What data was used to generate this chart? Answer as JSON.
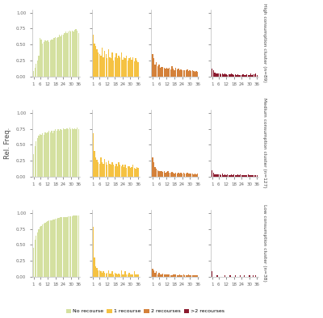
{
  "row_labels": [
    "High consumption cluster (n=89)",
    "Medium consumption cluster (n=127)",
    "Low consumption cluster (n=38)"
  ],
  "col_labels": [
    "No recourse",
    "1 recourse",
    "2 recourses",
    ">2 recourses"
  ],
  "colors": [
    "#d4e0a0",
    "#f5c242",
    "#d4813a",
    "#8b1a2e"
  ],
  "x_ticks": [
    1,
    6,
    12,
    18,
    24,
    30,
    36
  ],
  "n_timepoints": 36,
  "ylabel": "Rel. Freq.",
  "ylim": [
    0,
    1.0
  ],
  "yticks": [
    0.0,
    0.25,
    0.5,
    0.75,
    1.0
  ],
  "no_recourse_high": [
    0.08,
    0.13,
    0.2,
    0.25,
    0.32,
    0.6,
    0.58,
    0.52,
    0.54,
    0.56,
    0.55,
    0.57,
    0.54,
    0.56,
    0.58,
    0.58,
    0.6,
    0.62,
    0.6,
    0.62,
    0.65,
    0.63,
    0.66,
    0.65,
    0.68,
    0.7,
    0.68,
    0.7,
    0.72,
    0.71,
    0.72,
    0.7,
    0.73,
    0.74,
    0.72,
    0.68
  ],
  "recourse1_high": [
    0.65,
    0.52,
    0.48,
    0.42,
    0.38,
    0.35,
    0.32,
    0.45,
    0.3,
    0.4,
    0.35,
    0.28,
    0.42,
    0.3,
    0.28,
    0.38,
    0.25,
    0.3,
    0.36,
    0.28,
    0.32,
    0.3,
    0.38,
    0.26,
    0.3,
    0.28,
    0.32,
    0.25,
    0.28,
    0.3,
    0.26,
    0.3,
    0.24,
    0.28,
    0.25,
    0.22
  ],
  "recourse2_high": [
    0.35,
    0.28,
    0.18,
    0.22,
    0.16,
    0.18,
    0.14,
    0.15,
    0.15,
    0.13,
    0.12,
    0.14,
    0.12,
    0.13,
    0.11,
    0.16,
    0.12,
    0.1,
    0.13,
    0.11,
    0.12,
    0.1,
    0.11,
    0.09,
    0.1,
    0.1,
    0.09,
    0.11,
    0.08,
    0.09,
    0.08,
    0.09,
    0.08,
    0.07,
    0.08,
    0.07
  ],
  "recourse2p_high": [
    0.12,
    0.1,
    0.06,
    0.05,
    0.04,
    0.05,
    0.04,
    0.03,
    0.04,
    0.03,
    0.04,
    0.03,
    0.02,
    0.03,
    0.03,
    0.04,
    0.03,
    0.02,
    0.03,
    0.02,
    0.03,
    0.02,
    0.02,
    0.02,
    0.03,
    0.02,
    0.02,
    0.03,
    0.02,
    0.02,
    0.04,
    0.02,
    0.03,
    0.03,
    0.04,
    0.02
  ],
  "no_recourse_medium": [
    0.35,
    0.48,
    0.55,
    0.6,
    0.64,
    0.67,
    0.65,
    0.68,
    0.66,
    0.7,
    0.68,
    0.7,
    0.72,
    0.7,
    0.72,
    0.68,
    0.72,
    0.74,
    0.72,
    0.74,
    0.72,
    0.75,
    0.73,
    0.76,
    0.74,
    0.74,
    0.76,
    0.75,
    0.77,
    0.74,
    0.76,
    0.74,
    0.76,
    0.75,
    0.77,
    0.75
  ],
  "recourse1_medium": [
    0.68,
    0.4,
    0.3,
    0.26,
    0.22,
    0.2,
    0.3,
    0.22,
    0.2,
    0.28,
    0.22,
    0.18,
    0.25,
    0.2,
    0.18,
    0.22,
    0.18,
    0.16,
    0.2,
    0.16,
    0.22,
    0.18,
    0.16,
    0.18,
    0.15,
    0.18,
    0.14,
    0.16,
    0.16,
    0.14,
    0.15,
    0.18,
    0.14,
    0.12,
    0.15,
    0.13
  ],
  "recourse2_medium": [
    0.3,
    0.22,
    0.15,
    0.12,
    0.1,
    0.08,
    0.09,
    0.08,
    0.07,
    0.08,
    0.06,
    0.07,
    0.08,
    0.06,
    0.06,
    0.07,
    0.06,
    0.05,
    0.06,
    0.05,
    0.06,
    0.05,
    0.06,
    0.05,
    0.06,
    0.05,
    0.05,
    0.06,
    0.05,
    0.05,
    0.05,
    0.05,
    0.04,
    0.05,
    0.04,
    0.05
  ],
  "recourse2p_medium": [
    0.1,
    0.06,
    0.04,
    0.03,
    0.03,
    0.04,
    0.03,
    0.02,
    0.05,
    0.02,
    0.03,
    0.02,
    0.04,
    0.02,
    0.02,
    0.03,
    0.02,
    0.04,
    0.02,
    0.02,
    0.03,
    0.02,
    0.03,
    0.02,
    0.02,
    0.02,
    0.02,
    0.02,
    0.03,
    0.02,
    0.02,
    0.02,
    0.02,
    0.02,
    0.02,
    0.02
  ],
  "no_recourse_low": [
    0.45,
    0.58,
    0.65,
    0.7,
    0.74,
    0.78,
    0.8,
    0.82,
    0.84,
    0.85,
    0.86,
    0.87,
    0.88,
    0.88,
    0.89,
    0.9,
    0.9,
    0.91,
    0.91,
    0.92,
    0.92,
    0.93,
    0.93,
    0.93,
    0.94,
    0.94,
    0.94,
    0.95,
    0.95,
    0.95,
    0.95,
    0.96,
    0.96,
    0.96,
    0.96,
    0.96
  ],
  "recourse1_low": [
    0.78,
    0.3,
    0.16,
    0.14,
    0.1,
    0.1,
    0.08,
    0.06,
    0.08,
    0.06,
    0.05,
    0.06,
    0.1,
    0.05,
    0.05,
    0.08,
    0.04,
    0.06,
    0.05,
    0.04,
    0.05,
    0.04,
    0.1,
    0.04,
    0.04,
    0.08,
    0.04,
    0.04,
    0.06,
    0.04,
    0.04,
    0.04,
    0.08,
    0.03,
    0.04,
    0.04
  ],
  "recourse2_low": [
    0.12,
    0.1,
    0.06,
    0.08,
    0.04,
    0.06,
    0.04,
    0.03,
    0.05,
    0.03,
    0.03,
    0.03,
    0.03,
    0.03,
    0.02,
    0.02,
    0.04,
    0.03,
    0.03,
    0.02,
    0.02,
    0.03,
    0.02,
    0.02,
    0.04,
    0.02,
    0.02,
    0.02,
    0.03,
    0.02,
    0.02,
    0.02,
    0.02,
    0.02,
    0.02,
    0.02
  ],
  "recourse2p_low": [
    0.08,
    0.0,
    0.0,
    0.0,
    0.02,
    0.0,
    0.0,
    0.0,
    0.0,
    0.0,
    0.02,
    0.0,
    0.0,
    0.0,
    0.02,
    0.0,
    0.0,
    0.0,
    0.02,
    0.0,
    0.0,
    0.0,
    0.02,
    0.0,
    0.0,
    0.02,
    0.0,
    0.0,
    0.0,
    0.02,
    0.0,
    0.0,
    0.02,
    0.0,
    0.02,
    0.0
  ]
}
